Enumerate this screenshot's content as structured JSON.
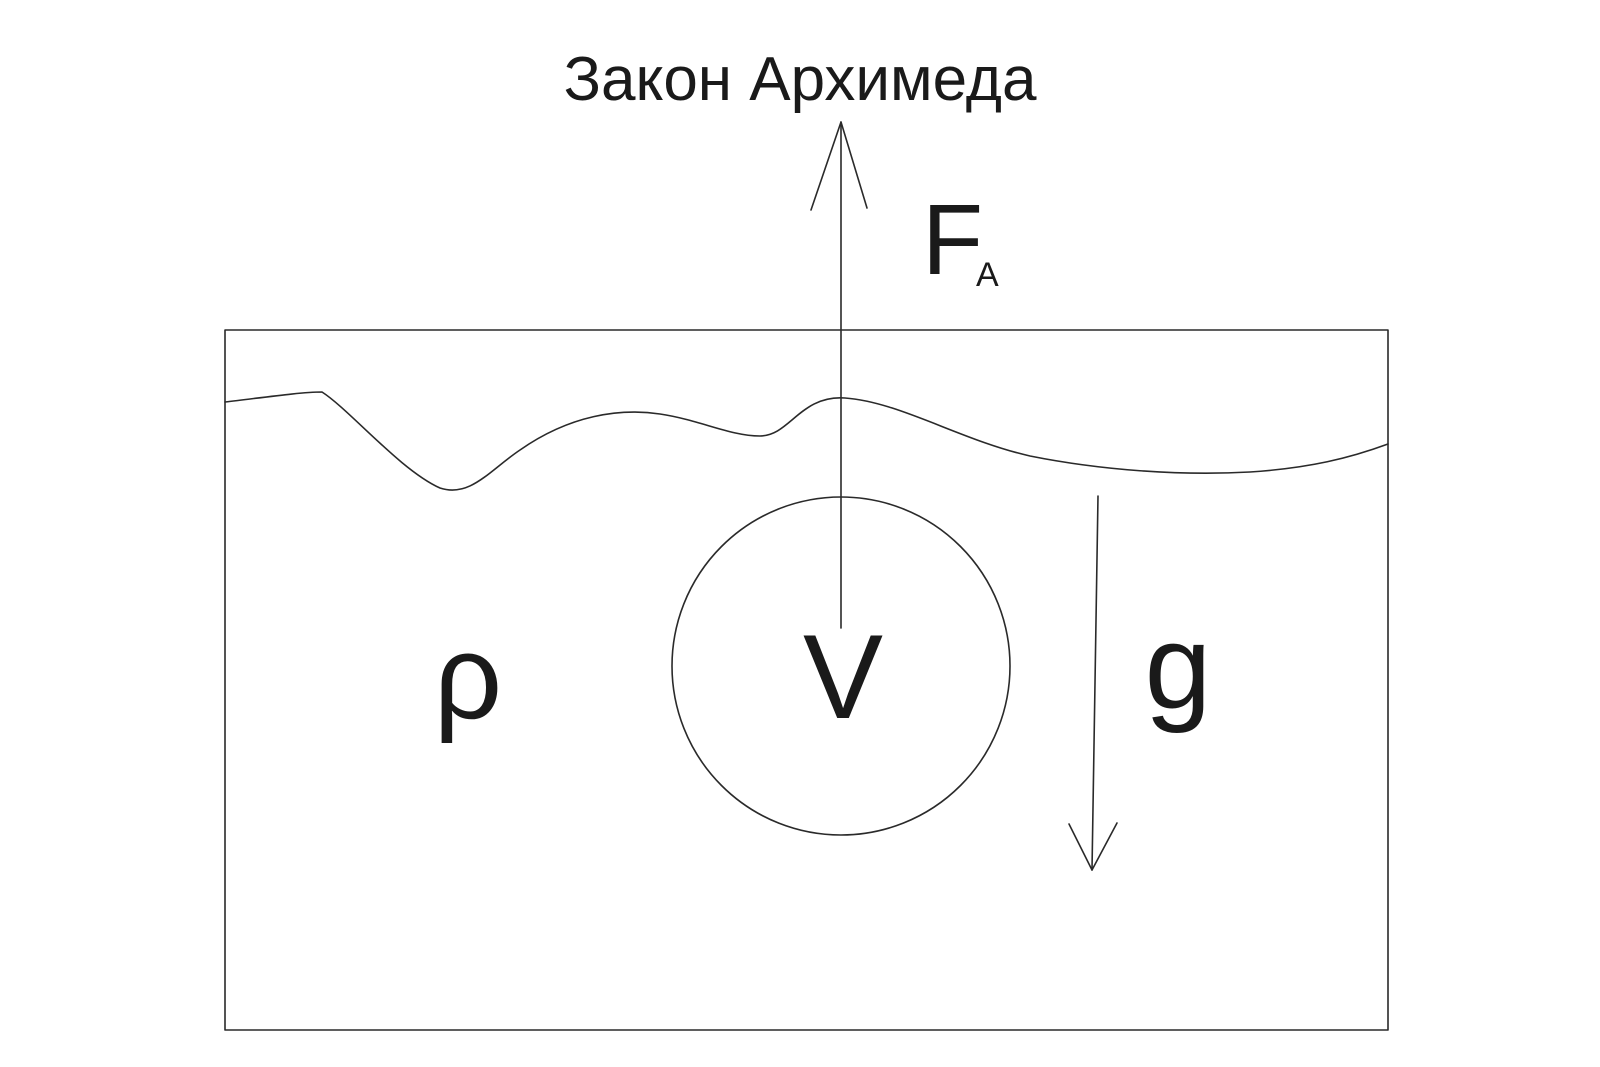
{
  "title": "Закон Архимеда",
  "labels": {
    "buoyant_force": "F",
    "buoyant_force_subscript": "A",
    "volume": "V",
    "density": "ρ",
    "gravity": "g"
  },
  "colors": {
    "background": "#ffffff",
    "ink": "#1a1a1a"
  }
}
